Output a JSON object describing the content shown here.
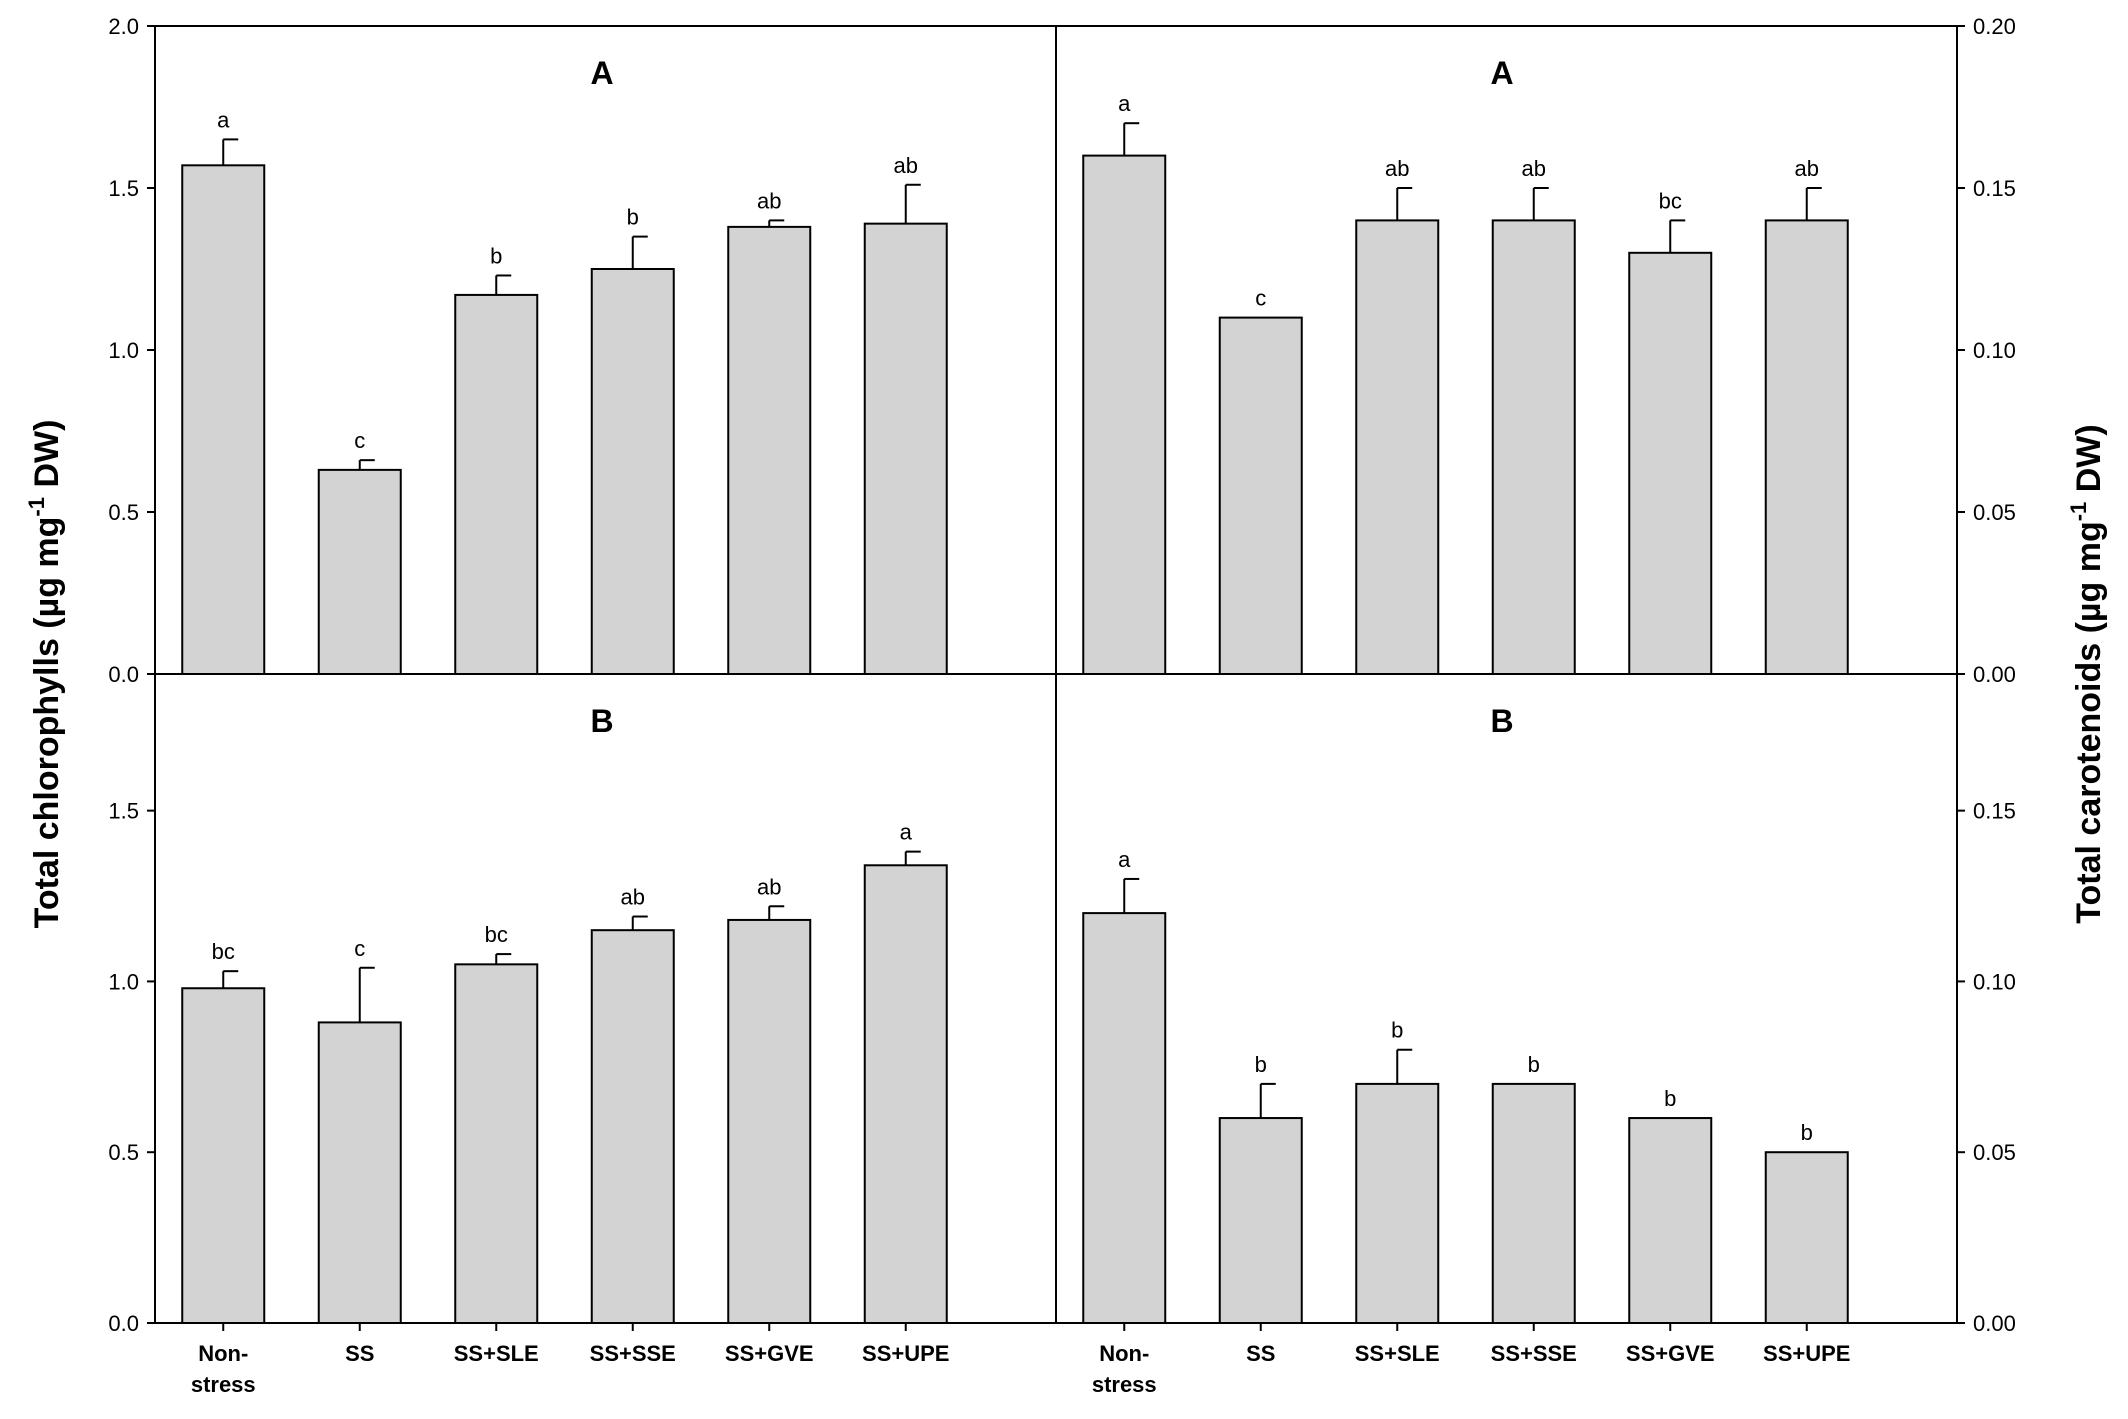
{
  "chart_data": {
    "type": "bar",
    "categories": [
      "Non-stress",
      "SS",
      "SS+SLE",
      "SS+SSE",
      "SS+GVE",
      "SS+UPE"
    ],
    "category_lines": [
      [
        "Non-",
        "stress"
      ],
      [
        "SS"
      ],
      [
        "SS+SLE"
      ],
      [
        "SS+SSE"
      ],
      [
        "SS+GVE"
      ],
      [
        "SS+UPE"
      ]
    ],
    "left_axis_title": {
      "main": "Total chlorophylls  (µg mg",
      "sup": "-1",
      "end": " DW)"
    },
    "right_axis_title": {
      "main": "Total carotenoids (µg mg",
      "sup": "-1",
      "end": " DW)"
    },
    "left_ticks_top": [
      "0.0",
      "0.5",
      "1.0",
      "1.5",
      "2.0"
    ],
    "left_ticks_bottom": [
      "0.0",
      "0.5",
      "1.0",
      "1.5"
    ],
    "right_ticks_top": [
      "0.00",
      "0.05",
      "0.10",
      "0.15",
      "0.20"
    ],
    "right_ticks_bottom": [
      "0.00",
      "0.05",
      "0.10",
      "0.15"
    ],
    "panels": [
      {
        "id": "chlorophyll-A",
        "label": "A",
        "row": "top",
        "col": "left",
        "ylim": [
          0,
          2.0
        ],
        "values": [
          1.57,
          0.63,
          1.17,
          1.25,
          1.38,
          1.39
        ],
        "errors": [
          0.08,
          0.03,
          0.06,
          0.1,
          0.02,
          0.12
        ],
        "letters": [
          "a",
          "c",
          "b",
          "b",
          "ab",
          "ab"
        ]
      },
      {
        "id": "carotenoid-A",
        "label": "A",
        "row": "top",
        "col": "right",
        "ylim": [
          0,
          0.2
        ],
        "values": [
          0.16,
          0.11,
          0.14,
          0.14,
          0.13,
          0.14
        ],
        "errors": [
          0.01,
          0.0,
          0.01,
          0.01,
          0.01,
          0.01
        ],
        "letters": [
          "a",
          "c",
          "ab",
          "ab",
          "bc",
          "ab"
        ]
      },
      {
        "id": "chlorophyll-B",
        "label": "B",
        "row": "bottom",
        "col": "left",
        "ylim": [
          0,
          1.9
        ],
        "values": [
          0.98,
          0.88,
          1.05,
          1.15,
          1.18,
          1.34
        ],
        "errors": [
          0.05,
          0.16,
          0.03,
          0.04,
          0.04,
          0.04
        ],
        "letters": [
          "bc",
          "c",
          "bc",
          "ab",
          "ab",
          "a"
        ]
      },
      {
        "id": "carotenoid-B",
        "label": "B",
        "row": "bottom",
        "col": "right",
        "ylim": [
          0,
          0.19
        ],
        "values": [
          0.12,
          0.06,
          0.07,
          0.07,
          0.06,
          0.05
        ],
        "errors": [
          0.01,
          0.01,
          0.01,
          0.0,
          0.0,
          0.0
        ],
        "letters": [
          "a",
          "b",
          "b",
          "b",
          "b",
          "b"
        ]
      }
    ]
  }
}
